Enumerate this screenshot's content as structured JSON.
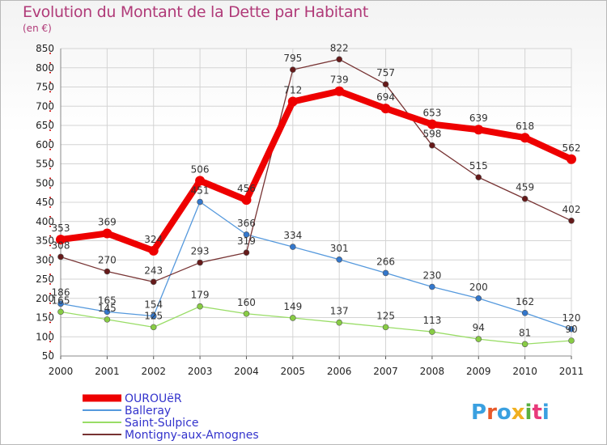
{
  "title": "Evolution du Montant de la Dette par Habitant",
  "unit_label": "(en €)",
  "logo_text": "Proxiti",
  "chart_data": {
    "type": "line",
    "x": [
      "2000",
      "2001",
      "2002",
      "2003",
      "2004",
      "2005",
      "2006",
      "2007",
      "2008",
      "2009",
      "2010",
      "2011"
    ],
    "ylim": [
      50,
      850
    ],
    "yticks": [
      50,
      100,
      150,
      200,
      250,
      300,
      350,
      400,
      450,
      500,
      550,
      600,
      650,
      700,
      750,
      800,
      850
    ],
    "grid": true,
    "legend_position": "bottom-left",
    "series": [
      {
        "name": "OUROUëR",
        "color": "#ee0000",
        "width": 8,
        "marker": "#ee0000",
        "markerR": 6,
        "values": [
          353,
          369,
          324,
          506,
          456,
          712,
          739,
          694,
          653,
          639,
          618,
          562
        ],
        "labels": [
          "353",
          "369",
          "324",
          "506",
          "456",
          "712",
          "739",
          "694",
          "653",
          "639",
          "618",
          "562"
        ]
      },
      {
        "name": "Balleray",
        "color": "#5599dd",
        "width": 1.3,
        "marker": "#3377cc",
        "markerR": 3.5,
        "values": [
          186,
          165,
          154,
          451,
          366,
          334,
          301,
          266,
          230,
          200,
          162,
          120
        ],
        "labels": [
          "186",
          "165",
          "154",
          "451",
          "366",
          "334",
          "301",
          "266",
          "230",
          "200",
          "162",
          "120"
        ]
      },
      {
        "name": "Saint-Sulpice",
        "color": "#99dd66",
        "width": 1.3,
        "marker": "#88cc44",
        "markerR": 3.5,
        "values": [
          165,
          145,
          125,
          179,
          160,
          149,
          137,
          125,
          113,
          94,
          81,
          90
        ],
        "labels": [
          "165",
          "145",
          "125",
          "179",
          "160",
          "149",
          "137",
          "125",
          "113",
          "94",
          "81",
          "90"
        ]
      },
      {
        "name": "Montigny-aux-Amognes",
        "color": "#773333",
        "width": 1.3,
        "marker": "#661a1a",
        "markerR": 3.5,
        "values": [
          308,
          270,
          243,
          293,
          319,
          795,
          822,
          757,
          598,
          515,
          459,
          402
        ],
        "labels": [
          "308",
          "270",
          "243",
          "293",
          "319",
          "795",
          "822",
          "757",
          "598",
          "515",
          "459",
          "402"
        ]
      }
    ]
  }
}
